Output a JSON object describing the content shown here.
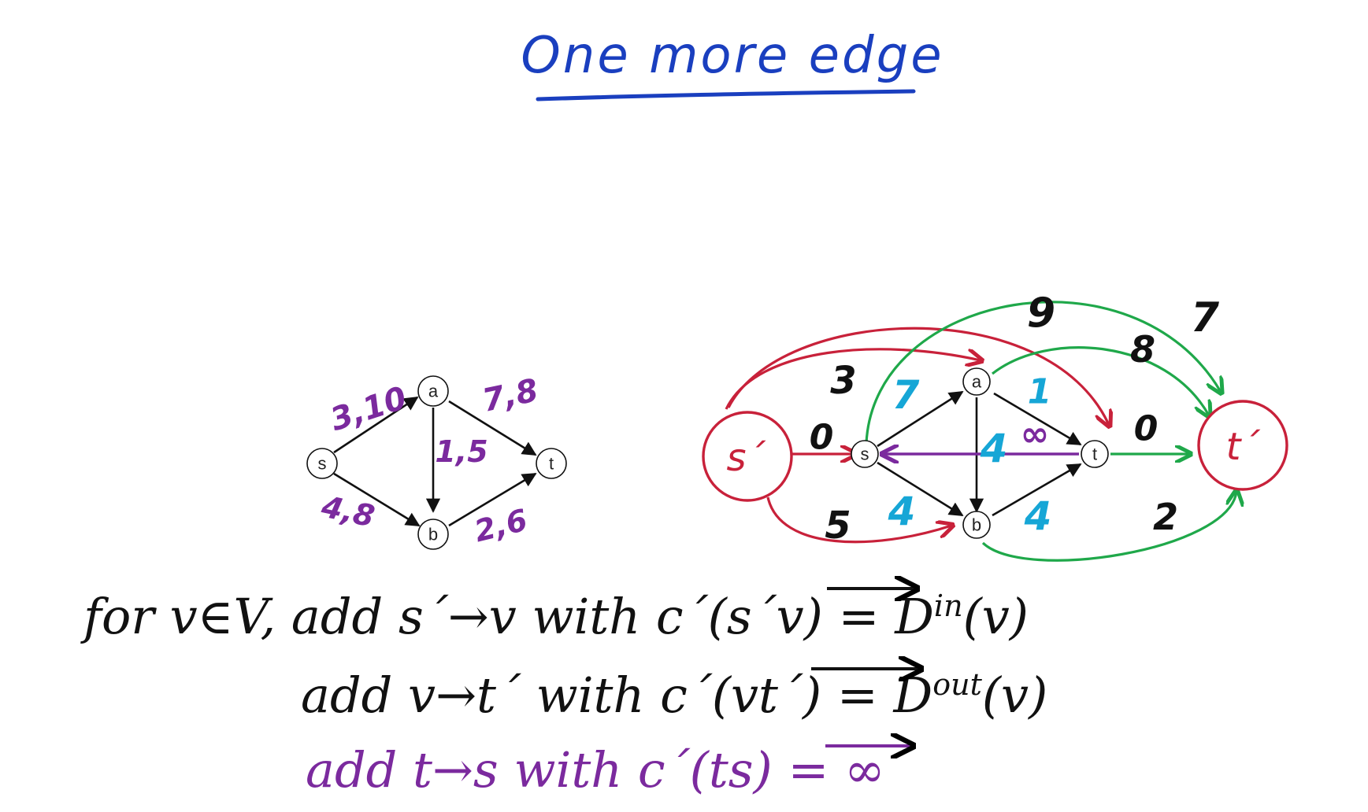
{
  "title": "One more edge",
  "colors": {
    "title": "#1a3fbf",
    "black": "#111111",
    "purple": "#7b2a9e",
    "red": "#c8213a",
    "green": "#1fa84a",
    "cyan": "#16a6d6"
  },
  "left_graph": {
    "nodes": {
      "s": "s",
      "a": "a",
      "b": "b",
      "t": "t"
    },
    "edge_labels": {
      "sa": "3,10",
      "at": "7,8",
      "ab": "1,5",
      "sb": "4,8",
      "bt": "2,6"
    }
  },
  "right_graph": {
    "nodes": {
      "s_prime": "s´",
      "t_prime": "t´",
      "s": "s",
      "a": "a",
      "b": "b",
      "t": "t"
    },
    "labels": {
      "sp_s": "0",
      "sp_a": "3",
      "sp_b": "5",
      "sp_t": "9",
      "s_a": "7",
      "s_b": "4",
      "a_t": "1",
      "a_b": "4",
      "b_t": "4",
      "t_s": "∞",
      "s_tp": "7",
      "a_tp": "8",
      "t_tp": "0",
      "b_tp": "2"
    }
  },
  "formulas": {
    "line1": "for v∈V, add s´→v with c´(s´v) = D^in(v)",
    "line1_parts": {
      "prefix": "for v∈V, add s´→v with c´(",
      "vec": "s´v",
      "mid": ") = D",
      "sup": "in",
      "suffix": "(v)"
    },
    "line2_parts": {
      "prefix": "add  v→t´ with c´(",
      "vec": "vt´",
      "mid": ") = D",
      "sup": "out",
      "suffix": "(v)"
    },
    "line3_parts": {
      "prefix": "add  t→s  with c´(",
      "vec": "ts",
      "suffix": ") = ∞"
    }
  }
}
